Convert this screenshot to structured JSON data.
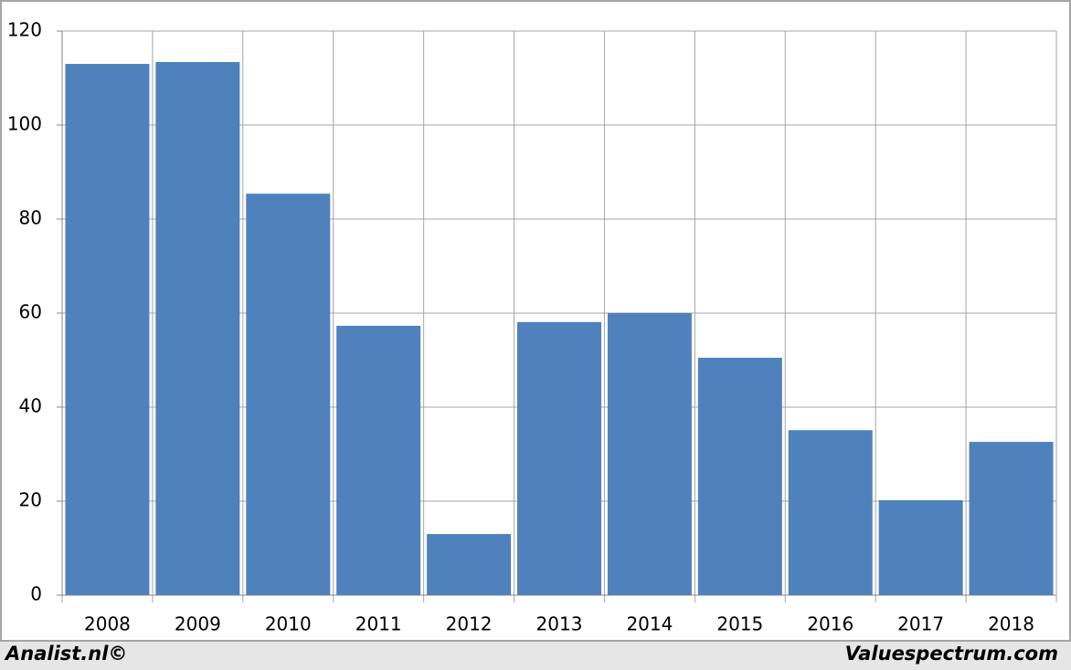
{
  "chart_data": {
    "type": "bar",
    "categories": [
      "2008",
      "2009",
      "2010",
      "2011",
      "2012",
      "2013",
      "2014",
      "2015",
      "2016",
      "2017",
      "2018"
    ],
    "values": [
      113,
      113.4,
      85.4,
      57.3,
      13,
      58.1,
      60,
      50.5,
      35.1,
      20.2,
      32.6
    ],
    "color": "#4f81bd",
    "ylim": [
      0,
      120
    ],
    "yticks": [
      0,
      20,
      40,
      60,
      80,
      100,
      120
    ],
    "grid": true,
    "footer_left": "Analist.nl©",
    "footer_right": "Valuespectrum.com"
  }
}
